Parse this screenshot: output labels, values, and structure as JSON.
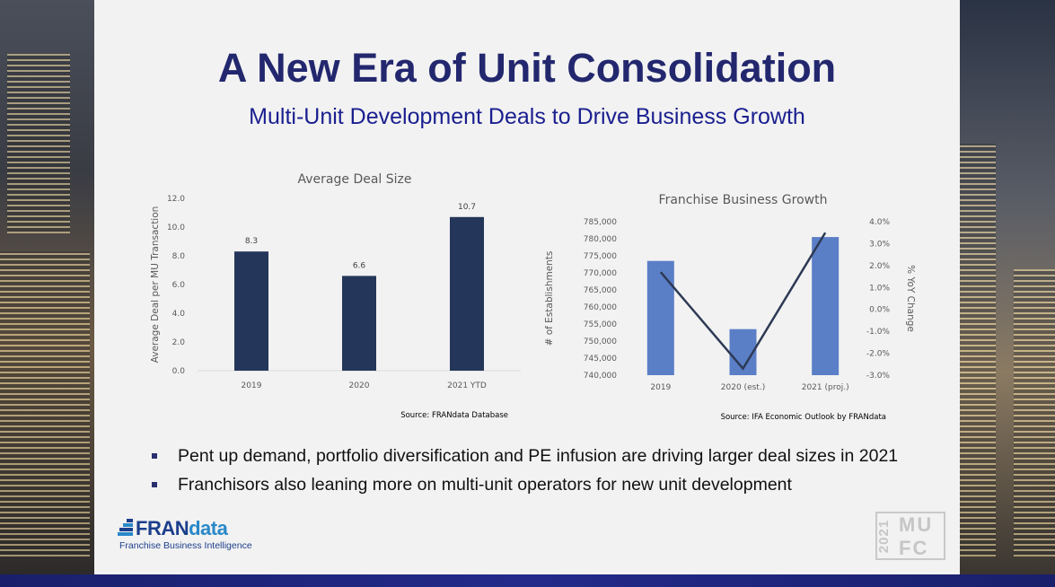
{
  "slide": {
    "title": "A New Era of Unit Consolidation",
    "subtitle": "Multi-Unit Development Deals to Drive Business Growth"
  },
  "colors": {
    "title": "#22276e",
    "subtitle": "#1a1f8f",
    "bar_dark": "#243659",
    "bar_light": "#5b7fc7",
    "line": "#2d3a55",
    "footer": "#1f2780"
  },
  "bullets": [
    "Pent up demand, portfolio diversification and PE infusion are driving larger deal sizes in 2021",
    "Franchisors also leaning more on multi-unit operators for new unit development"
  ],
  "logo": {
    "word_a": "FRAN",
    "word_b": "data",
    "tagline": "Franchise Business Intelligence"
  },
  "badge": {
    "year": "2021",
    "line1": "MU",
    "line2": "FC"
  },
  "chart_data": [
    {
      "type": "bar",
      "title": "Average Deal Size",
      "ylabel": "Average Deal per MU Transaction",
      "xlabel": "",
      "categories": [
        "2019",
        "2020",
        "2021 YTD"
      ],
      "values": [
        8.3,
        6.6,
        10.7
      ],
      "data_labels": [
        "8.3",
        "6.6",
        "10.7"
      ],
      "ylim": [
        0,
        12
      ],
      "yticks": [
        "0.0",
        "2.0",
        "4.0",
        "6.0",
        "8.0",
        "10.0",
        "12.0"
      ],
      "grid": false,
      "source": "Source: FRANdata Database"
    },
    {
      "type": "bar",
      "title": "Franchise Business Growth",
      "ylabel": "# of Establishments",
      "y2label": "% YoY Change",
      "categories": [
        "2019",
        "2020 (est.)",
        "2021 (proj.)"
      ],
      "series": [
        {
          "kind": "bar",
          "axis": "left",
          "values": [
            773500,
            753500,
            780500
          ]
        },
        {
          "kind": "line",
          "axis": "right",
          "values": [
            1.7,
            -2.7,
            3.5
          ]
        }
      ],
      "ylim": [
        740000,
        785000
      ],
      "yticks": [
        "740,000",
        "745,000",
        "750,000",
        "755,000",
        "760,000",
        "765,000",
        "770,000",
        "775,000",
        "780,000",
        "785,000"
      ],
      "y2lim": [
        -3.0,
        4.0
      ],
      "y2ticks": [
        "-3.0%",
        "-2.0%",
        "-1.0%",
        "0.0%",
        "1.0%",
        "2.0%",
        "3.0%",
        "4.0%"
      ],
      "source": "Source: IFA Economic Outlook by FRANdata"
    }
  ]
}
